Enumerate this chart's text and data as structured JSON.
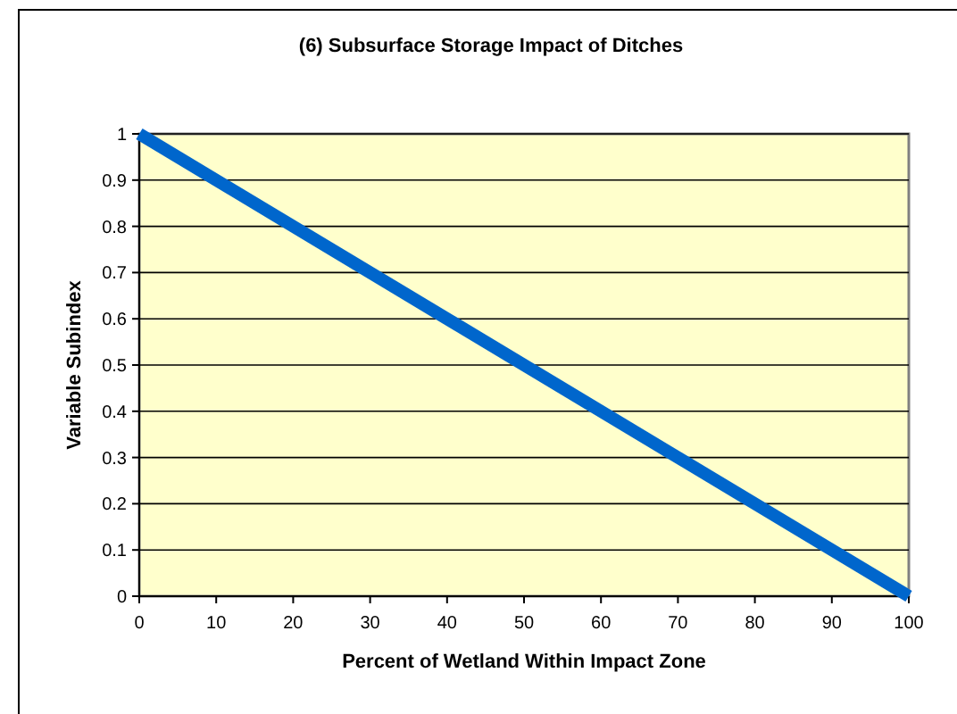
{
  "chart_data": {
    "type": "line",
    "title": "(6) Subsurface Storage Impact of Ditches",
    "xlabel": "Percent of Wetland Within Impact Zone",
    "ylabel": "Variable Subindex",
    "x": [
      0,
      100
    ],
    "series": [
      {
        "color": "#0066cc",
        "values": [
          1,
          0
        ]
      }
    ],
    "xlim": [
      0,
      100
    ],
    "xticks": [
      0,
      10,
      20,
      30,
      40,
      50,
      60,
      70,
      80,
      90,
      100
    ],
    "ylim": [
      0,
      1
    ],
    "yticks": [
      0,
      0.1,
      0.2,
      0.3,
      0.4,
      0.5,
      0.6,
      0.7,
      0.8,
      0.9,
      1
    ],
    "grid": "y",
    "marker": "none",
    "line_style": "solid"
  }
}
